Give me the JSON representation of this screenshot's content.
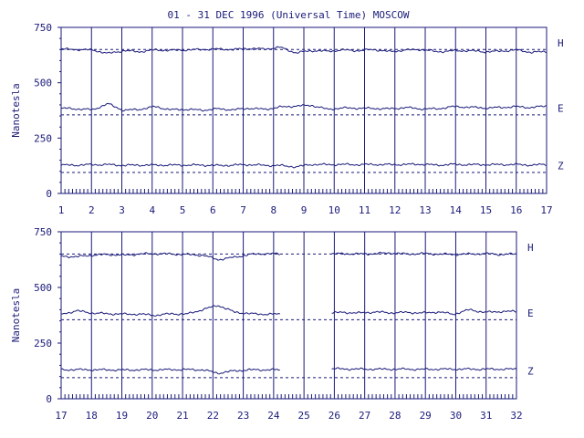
{
  "title": "01 - 31 DEC 1996 (Universal Time) MOSCOW",
  "colors": {
    "ink": "#1a1a7a",
    "background": "#ffffff"
  },
  "chart_data": [
    {
      "type": "line",
      "ylabel": "Nanotesla",
      "ylim": [
        0,
        750
      ],
      "yticks": [
        "0",
        "250",
        "500",
        "750"
      ],
      "xlim": [
        1,
        17
      ],
      "xticks": [
        "1",
        "2",
        "3",
        "4",
        "5",
        "6",
        "7",
        "8",
        "9",
        "10",
        "11",
        "12",
        "13",
        "14",
        "15",
        "16",
        "17"
      ],
      "grid": "vertical lines at each day",
      "series": [
        {
          "name": "H",
          "baseline": 650,
          "values": [
            652,
            650,
            648,
            632,
            645,
            640,
            648,
            646,
            648,
            650,
            652,
            650,
            655,
            652,
            660,
            635,
            645,
            642,
            648,
            645,
            650,
            640,
            648,
            650,
            640,
            644,
            645,
            640,
            642,
            648,
            638,
            640
          ]
        },
        {
          "name": "E",
          "baseline": 355,
          "values": [
            385,
            382,
            378,
            405,
            375,
            380,
            392,
            378,
            380,
            376,
            382,
            378,
            385,
            380,
            390,
            395,
            398,
            380,
            386,
            385,
            384,
            382,
            388,
            382,
            382,
            392,
            390,
            386,
            388,
            392,
            388,
            395
          ]
        },
        {
          "name": "Z",
          "baseline": 95,
          "values": [
            128,
            128,
            130,
            130,
            127,
            128,
            128,
            128,
            128,
            128,
            126,
            128,
            130,
            127,
            126,
            120,
            131,
            130,
            131,
            130,
            131,
            130,
            131,
            132,
            128,
            131,
            130,
            130,
            130,
            131,
            128,
            131
          ]
        }
      ]
    },
    {
      "type": "line",
      "ylabel": "Nanotesla",
      "ylim": [
        0,
        750
      ],
      "yticks": [
        "0",
        "250",
        "500",
        "750"
      ],
      "xlim": [
        17,
        32
      ],
      "xticks": [
        "17",
        "18",
        "19",
        "20",
        "21",
        "22",
        "23",
        "24",
        "25",
        "26",
        "27",
        "28",
        "29",
        "30",
        "31",
        "32"
      ],
      "grid": "vertical lines at each day",
      "gap": [
        25.3,
        25.9
      ],
      "series": [
        {
          "name": "H",
          "baseline": 650,
          "values": [
            640,
            638,
            645,
            648,
            645,
            650,
            652,
            650,
            648,
            645,
            625,
            635,
            648,
            652,
            650,
            null,
            null,
            650,
            652,
            650,
            652,
            655,
            650,
            652,
            650,
            648,
            650,
            652,
            648,
            650
          ]
        },
        {
          "name": "E",
          "baseline": 355,
          "values": [
            380,
            395,
            385,
            382,
            380,
            380,
            375,
            382,
            380,
            400,
            420,
            390,
            382,
            380,
            380,
            null,
            null,
            385,
            388,
            385,
            390,
            386,
            388,
            385,
            390,
            380,
            400,
            388,
            392,
            392
          ]
        },
        {
          "name": "Z",
          "baseline": 95,
          "values": [
            130,
            131,
            130,
            130,
            129,
            130,
            130,
            131,
            131,
            130,
            115,
            125,
            130,
            130,
            130,
            null,
            null,
            135,
            134,
            133,
            133,
            133,
            133,
            132,
            133,
            133,
            133,
            133,
            133,
            133
          ]
        }
      ]
    }
  ]
}
